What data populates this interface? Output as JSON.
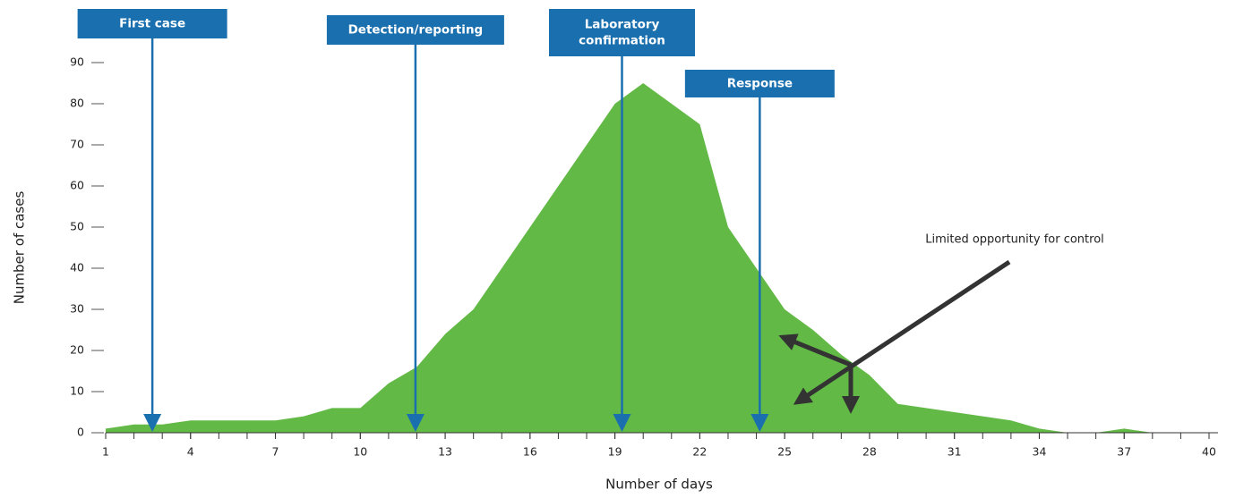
{
  "chart_data": {
    "type": "area",
    "x": [
      1,
      2,
      3,
      4,
      5,
      6,
      7,
      8,
      9,
      10,
      11,
      12,
      13,
      14,
      15,
      16,
      17,
      18,
      19,
      20,
      21,
      22,
      23,
      24,
      25,
      26,
      27,
      28,
      29,
      30,
      31,
      32,
      33,
      34,
      35,
      36,
      37,
      38,
      39,
      40
    ],
    "values": [
      1,
      2,
      2,
      3,
      3,
      3,
      3,
      4,
      6,
      6,
      12,
      16,
      24,
      30,
      40,
      50,
      60,
      70,
      80,
      85,
      80,
      75,
      50,
      40,
      30,
      25,
      19,
      14,
      7,
      6,
      5,
      4,
      3,
      1,
      0,
      0,
      1,
      0,
      0,
      0
    ],
    "color": "#62b946",
    "xlim": [
      1,
      40
    ],
    "xticks": [
      1,
      4,
      7,
      10,
      13,
      16,
      19,
      22,
      25,
      28,
      31,
      34,
      37,
      40
    ],
    "ylim": [
      0,
      90
    ],
    "yticks": [
      0,
      10,
      20,
      30,
      40,
      50,
      60,
      70,
      80,
      90
    ],
    "xlabel": "Number of days",
    "ylabel": "Number of cases",
    "events": [
      {
        "x": 2.65,
        "label": [
          "First case"
        ]
      },
      {
        "x": 11.95,
        "label": [
          "Detection/reporting"
        ]
      },
      {
        "x": 19.25,
        "label": [
          "Laboratory",
          "confirmation"
        ]
      },
      {
        "x": 24.12,
        "label": [
          "Response"
        ]
      }
    ],
    "event_color": "#1a6faf",
    "annotation": "Limited opportunity for control"
  }
}
